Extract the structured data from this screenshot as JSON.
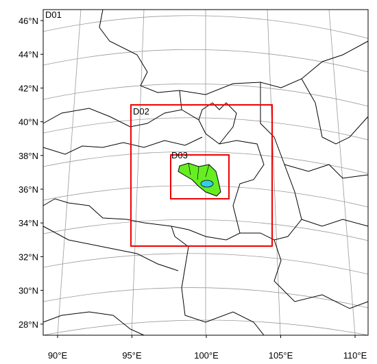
{
  "domains": [
    "D01",
    "D02",
    "D03"
  ],
  "lat_labels": [
    "46°N",
    "44°N",
    "42°N",
    "40°N",
    "38°N",
    "36°N",
    "34°N",
    "32°N",
    "30°N",
    "28°N"
  ],
  "lon_labels": [
    "90°E",
    "95°E",
    "100°E",
    "105°E",
    "110°E"
  ]
}
